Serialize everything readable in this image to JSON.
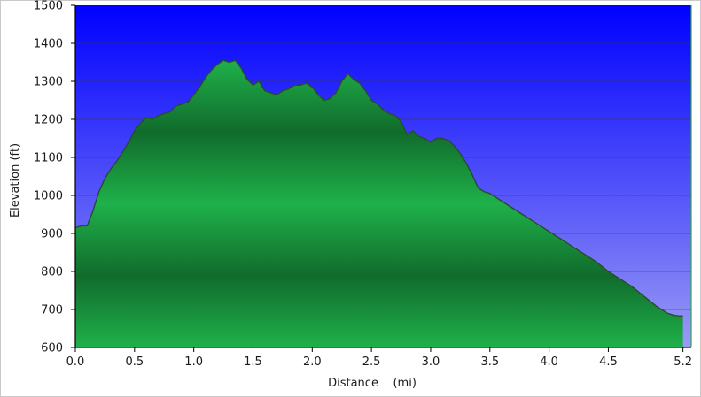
{
  "chart_data": {
    "type": "area",
    "xlabel": "Distance    (mi)",
    "ylabel": "Elevation (ft)",
    "xlim": [
      0,
      5.2
    ],
    "ylim": [
      600,
      1500
    ],
    "x_ticks": [
      "0.0",
      "0.5",
      "1.0",
      "1.5",
      "2.0",
      "2.5",
      "3.0",
      "3.5",
      "4.0",
      "4.5",
      "5.2"
    ],
    "x_tick_values": [
      0,
      0.5,
      1.0,
      1.5,
      2.0,
      2.5,
      3.0,
      3.5,
      4.0,
      4.5,
      5.13
    ],
    "y_ticks": [
      "600",
      "700",
      "800",
      "900",
      "1000",
      "1100",
      "1200",
      "1300",
      "1400",
      "1500"
    ],
    "y_tick_values": [
      600,
      700,
      800,
      900,
      1000,
      1100,
      1200,
      1300,
      1400,
      1500
    ],
    "grid": true,
    "colors": {
      "background_top": "#0000ff",
      "background_bottom": "#9a9af5",
      "fill_light": "#1fb14a",
      "fill_dark": "#116b2c",
      "line": "#2c4a2c"
    },
    "x": [
      0,
      0.05,
      0.1,
      0.15,
      0.2,
      0.25,
      0.3,
      0.35,
      0.4,
      0.45,
      0.5,
      0.55,
      0.6,
      0.65,
      0.7,
      0.75,
      0.8,
      0.85,
      0.9,
      0.95,
      1.0,
      1.05,
      1.1,
      1.15,
      1.2,
      1.25,
      1.3,
      1.35,
      1.4,
      1.45,
      1.5,
      1.55,
      1.6,
      1.65,
      1.7,
      1.75,
      1.8,
      1.85,
      1.9,
      1.95,
      2.0,
      2.05,
      2.1,
      2.15,
      2.2,
      2.25,
      2.3,
      2.35,
      2.4,
      2.45,
      2.5,
      2.55,
      2.6,
      2.65,
      2.7,
      2.75,
      2.8,
      2.85,
      2.9,
      2.95,
      3.0,
      3.05,
      3.1,
      3.15,
      3.2,
      3.25,
      3.3,
      3.35,
      3.4,
      3.45,
      3.5,
      3.6,
      3.7,
      3.8,
      3.9,
      4.0,
      4.1,
      4.2,
      4.3,
      4.4,
      4.5,
      4.6,
      4.7,
      4.8,
      4.9,
      5.0,
      5.05,
      5.1,
      5.13
    ],
    "y": [
      915,
      920,
      920,
      960,
      1010,
      1045,
      1070,
      1090,
      1115,
      1140,
      1170,
      1190,
      1205,
      1200,
      1210,
      1215,
      1220,
      1235,
      1240,
      1245,
      1265,
      1285,
      1310,
      1330,
      1345,
      1355,
      1350,
      1355,
      1335,
      1305,
      1290,
      1300,
      1275,
      1270,
      1265,
      1275,
      1280,
      1290,
      1290,
      1295,
      1285,
      1265,
      1250,
      1255,
      1270,
      1300,
      1320,
      1305,
      1295,
      1275,
      1250,
      1240,
      1225,
      1215,
      1210,
      1195,
      1160,
      1170,
      1155,
      1150,
      1140,
      1150,
      1150,
      1145,
      1130,
      1110,
      1085,
      1055,
      1020,
      1010,
      1005,
      985,
      965,
      945,
      925,
      905,
      885,
      865,
      845,
      825,
      800,
      780,
      760,
      735,
      710,
      690,
      685,
      683,
      683
    ]
  }
}
